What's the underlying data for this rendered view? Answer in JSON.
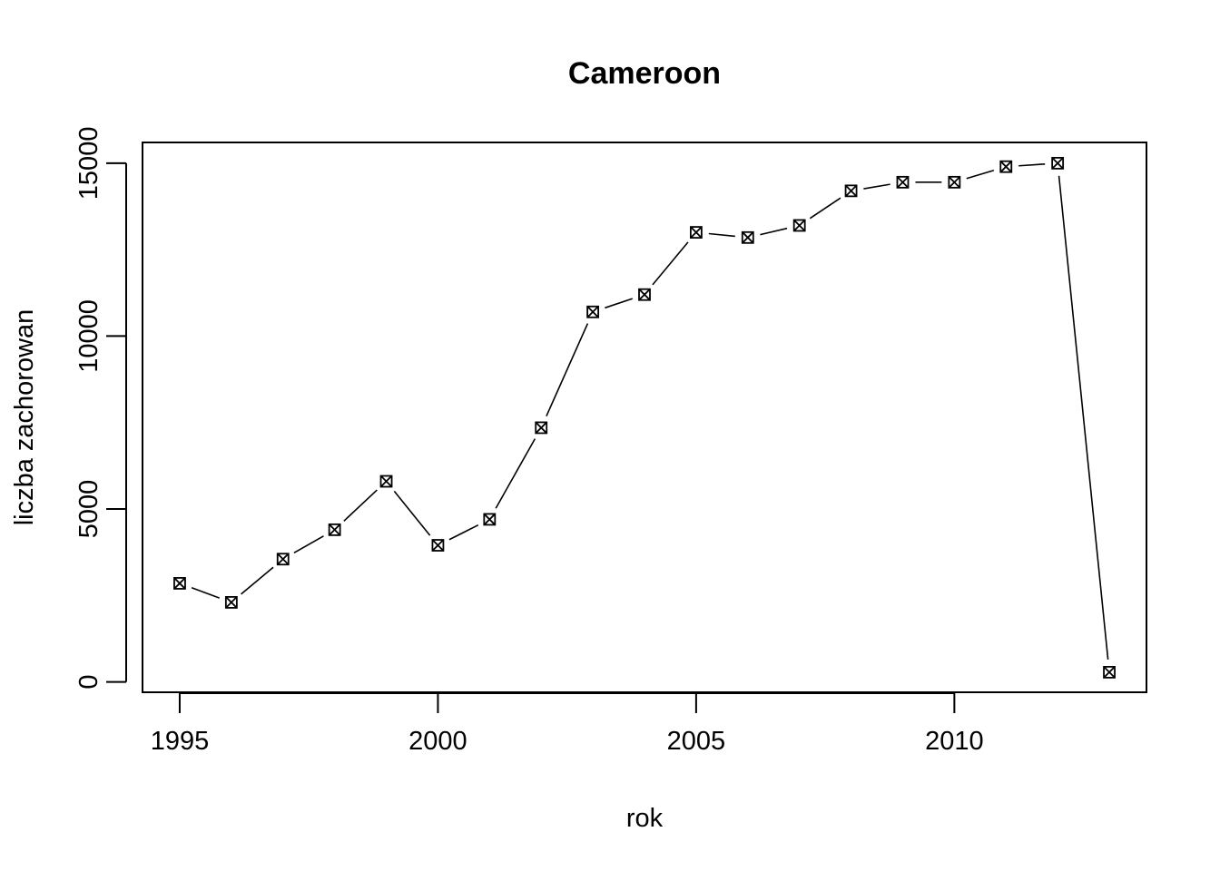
{
  "chart_data": {
    "type": "line",
    "title": "Cameroon",
    "xlabel": "rok",
    "ylabel": "liczba zachorowan",
    "x": [
      1995,
      1996,
      1997,
      1998,
      1999,
      2000,
      2001,
      2002,
      2003,
      2004,
      2005,
      2006,
      2007,
      2008,
      2009,
      2010,
      2011,
      2012,
      2013
    ],
    "series": [
      {
        "values": [
          2850,
          2300,
          3550,
          4400,
          5800,
          3950,
          4700,
          7350,
          10700,
          11200,
          13000,
          12850,
          13200,
          14200,
          14450,
          14450,
          14900,
          15000,
          280
        ],
        "marker": "square-x",
        "line_style": "solid-with-gaps",
        "color": "#000000"
      }
    ],
    "x_ticks": [
      "1995",
      "2000",
      "2005",
      "2010"
    ],
    "y_ticks": [
      "0",
      "5000",
      "10000",
      "15000"
    ],
    "xlim": [
      1994.28,
      2013.72
    ],
    "ylim": [
      -300,
      15600
    ],
    "grid": false,
    "legend": "none"
  }
}
